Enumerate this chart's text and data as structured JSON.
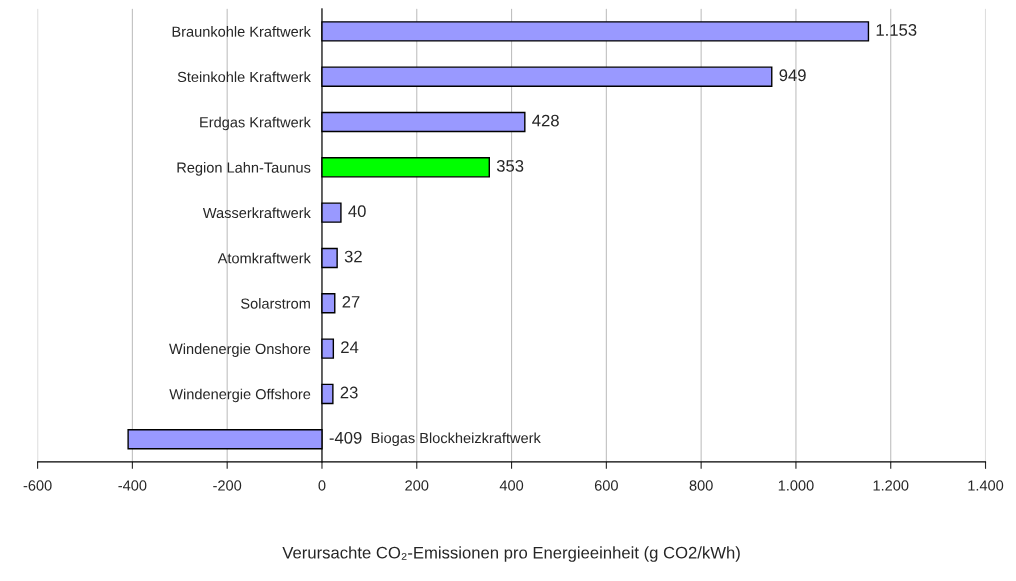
{
  "chart_data": {
    "type": "bar",
    "orientation": "horizontal",
    "categories": [
      "Braunkohle Kraftwerk",
      "Steinkohle Kraftwerk",
      "Erdgas Kraftwerk",
      "Region Lahn-Taunus",
      "Wasserkraftwerk",
      "Atomkraftwerk",
      "Solarstrom",
      "Windenergie Onshore",
      "Windenergie Offshore",
      "Biogas Blockheizkraftwerk"
    ],
    "values": [
      1153,
      949,
      428,
      353,
      40,
      32,
      27,
      24,
      23,
      -409
    ],
    "value_labels": [
      "1.153",
      "949",
      "428",
      "353",
      "40",
      "32",
      "27",
      "24",
      "23",
      "-409"
    ],
    "colors": [
      "#9999ff",
      "#9999ff",
      "#9999ff",
      "#00ff00",
      "#9999ff",
      "#9999ff",
      "#9999ff",
      "#9999ff",
      "#9999ff",
      "#9999ff"
    ],
    "xlim": [
      -600,
      1400
    ],
    "xticks": [
      -600,
      -400,
      -200,
      0,
      200,
      400,
      600,
      800,
      {
        "value": 1000,
        "label": "1.000"
      },
      {
        "value": 1200,
        "label": "1.200"
      },
      {
        "value": 1400,
        "label": "1.400"
      }
    ],
    "xlabel": "Verursachte CO₂-Emissionen pro Energieeinheit (g CO2/kWh)",
    "grid": "x"
  }
}
